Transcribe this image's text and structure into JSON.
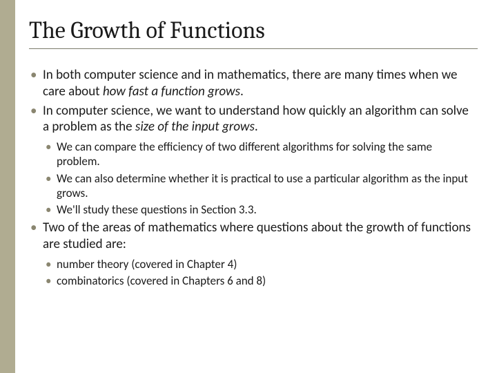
{
  "slide": {
    "title": "The Growth of Functions",
    "title_fontsize": 34,
    "title_color": "#1a1a1a",
    "underline_color": "#7a7a6a",
    "sidebar_color": "#b0ac91",
    "background_color": "#ffffff",
    "bullet_color_l1": "#8a8670",
    "bullet_color_l2": "#8a8670",
    "text_color": "#1a1a1a",
    "body_fontsize_l1": 19,
    "body_fontsize_l2": 17,
    "line_height_l1": 1.25,
    "line_height_l2": 1.25,
    "bullets": [
      {
        "pre": "In both computer science and in mathematics, there are many times when we care about ",
        "italic": "how fast a function grows",
        "post": "."
      },
      {
        "pre": "In computer science, we want to understand how quickly an algorithm can solve a problem as the ",
        "italic": "size of the input grows",
        "post": ".",
        "children": [
          {
            "text": "We can compare the efficiency of two different algorithms for solving the same problem."
          },
          {
            "text": "We can also determine whether it is practical to use a particular algorithm as the input grows."
          },
          {
            "text": "We'll study these questions in Section 3.3."
          }
        ]
      },
      {
        "pre": "Two of the areas of mathematics where questions about the growth of functions are studied are:",
        "italic": "",
        "post": "",
        "children": [
          {
            "text": "number theory (covered in Chapter 4)"
          },
          {
            "text": "combinatorics (covered in Chapters 6 and 8)"
          }
        ]
      }
    ]
  }
}
